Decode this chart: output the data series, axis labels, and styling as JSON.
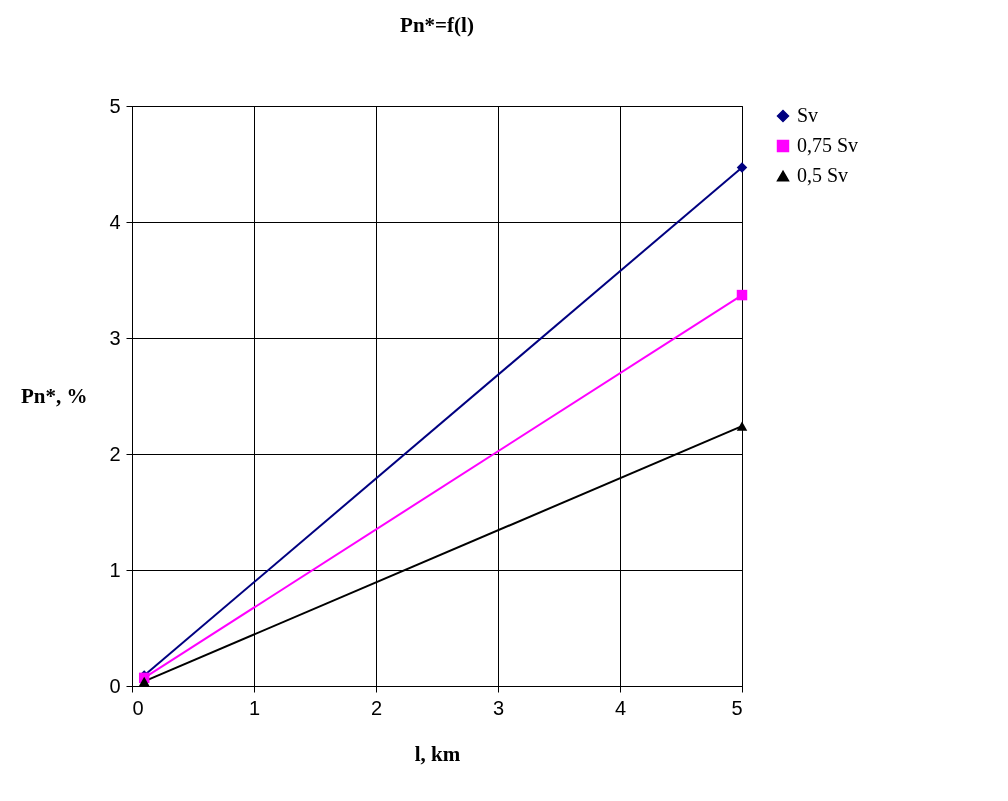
{
  "chart_data": {
    "type": "line",
    "title": "Pn*=f(l)",
    "xlabel": "l, km",
    "ylabel": "Pn*, %",
    "xlim": [
      0,
      5
    ],
    "xticks": [
      0,
      1,
      2,
      3,
      4,
      5
    ],
    "ylim": [
      0,
      5
    ],
    "yticks": [
      0,
      1,
      2,
      3,
      4,
      5
    ],
    "grid": true,
    "legend": "right",
    "x": [
      0.1,
      5
    ],
    "series": [
      {
        "name": "Sv",
        "color": "#000080",
        "marker": "diamond",
        "values": [
          0.09,
          4.47
        ]
      },
      {
        "name": "0,75 Sv",
        "color": "#ff00ff",
        "marker": "square",
        "values": [
          0.07,
          3.37
        ]
      },
      {
        "name": "0,5 Sv",
        "color": "#000000",
        "marker": "triangle",
        "values": [
          0.04,
          2.24
        ]
      }
    ]
  }
}
